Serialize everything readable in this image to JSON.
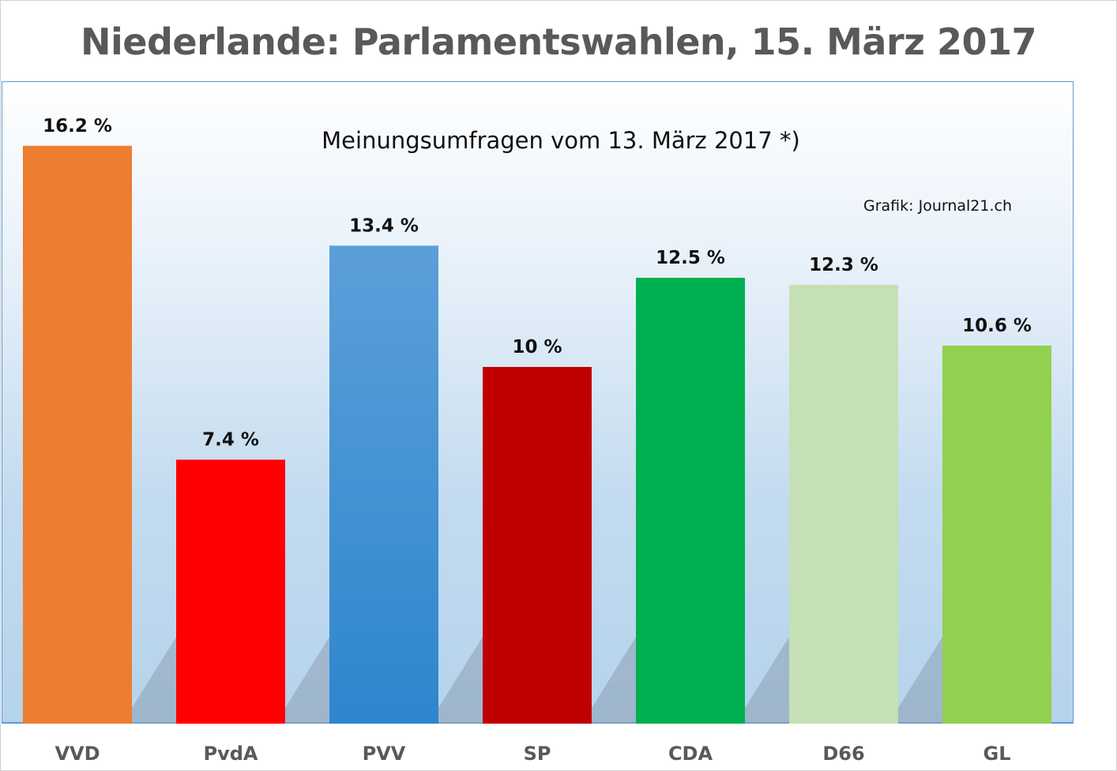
{
  "chart_data": {
    "type": "bar",
    "title": "Niederlande: Parlamentswahlen, 15. März 2017",
    "subtitle": "Meinungsumfragen vom 13. März 2017 *)",
    "annotation": "Grafik: Journal21.ch",
    "categories": [
      "VVD",
      "PvdA",
      "PVV",
      "SP",
      "CDA",
      "D66",
      "GL"
    ],
    "values": [
      16.2,
      7.4,
      13.4,
      10,
      12.5,
      12.3,
      10.6
    ],
    "data_labels": [
      "16.2 %",
      "7.4 %",
      "13.4 %",
      "10 %",
      "12.5 %",
      "12.3 %",
      "10.6 %"
    ],
    "colors": [
      "#ed7d31",
      "#ff0000",
      "#4a90d0",
      "#c00000",
      "#00b050",
      "#c5e0b4",
      "#92d050"
    ],
    "xlabel": "",
    "ylabel": "",
    "ylim": [
      0,
      18
    ],
    "grid": false,
    "legend": "none"
  }
}
